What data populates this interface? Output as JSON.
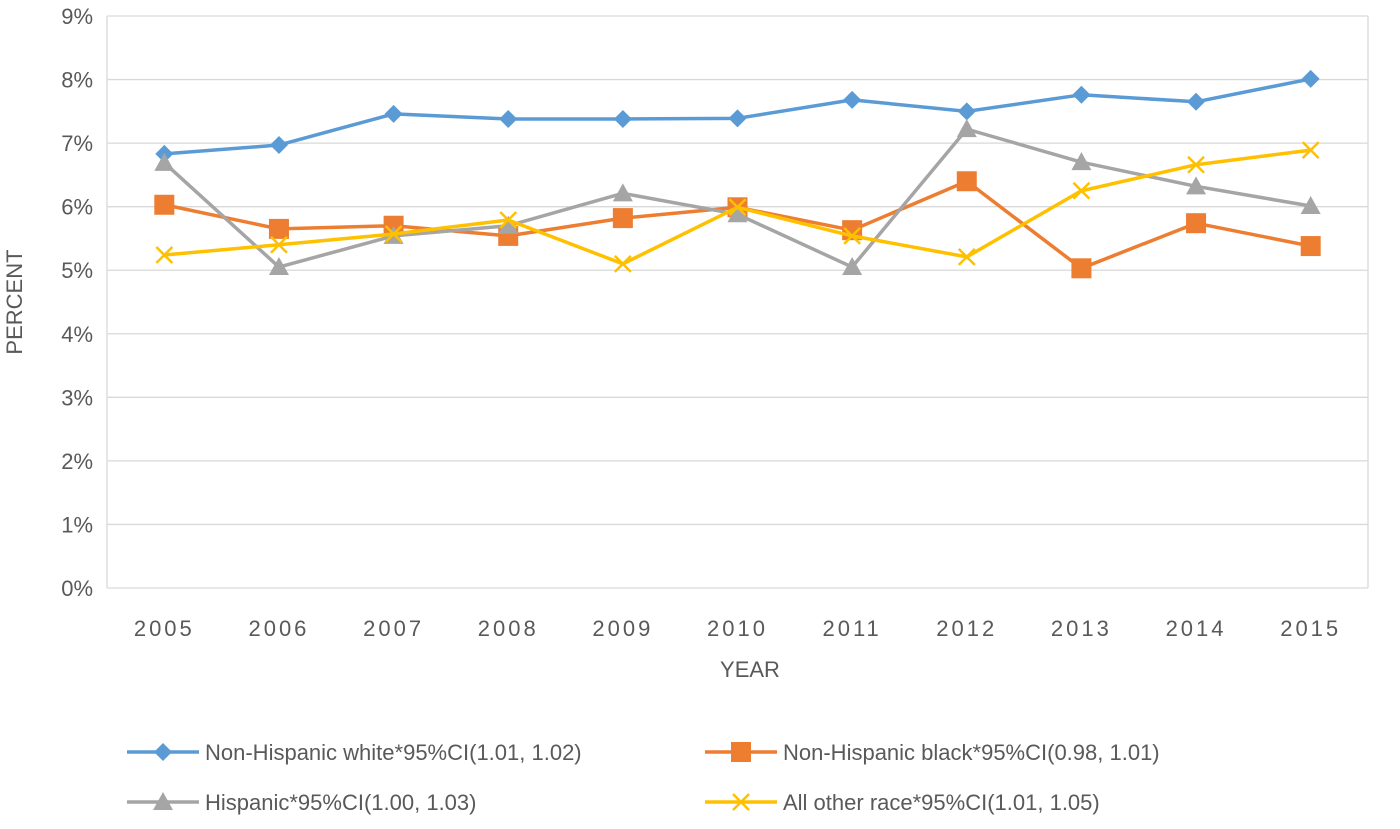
{
  "chart_data": {
    "type": "line",
    "title": "",
    "xlabel": "YEAR",
    "ylabel": "PERCENT",
    "ylim": [
      0,
      9
    ],
    "yticks": [
      "0%",
      "1%",
      "2%",
      "3%",
      "4%",
      "5%",
      "6%",
      "7%",
      "8%",
      "9%"
    ],
    "grid": true,
    "legend_placement": "bottom",
    "categories": [
      "2005",
      "2006",
      "2007",
      "2008",
      "2009",
      "2010",
      "2011",
      "2012",
      "2013",
      "2014",
      "2015"
    ],
    "series": [
      {
        "name": "Non-Hispanic white*95%CI(1.01, 1.02)",
        "color": "#5B9BD5",
        "marker": "diamond",
        "values": [
          6.83,
          6.97,
          7.46,
          7.38,
          7.38,
          7.39,
          7.68,
          7.5,
          7.76,
          7.65,
          8.01
        ]
      },
      {
        "name": "Non-Hispanic black*95%CI(0.98, 1.01)",
        "color": "#ED7D31",
        "marker": "square",
        "values": [
          6.03,
          5.65,
          5.7,
          5.54,
          5.82,
          5.99,
          5.63,
          6.4,
          5.03,
          5.74,
          5.38
        ]
      },
      {
        "name": "Hispanic*95%CI(1.00, 1.03)",
        "color": "#A5A5A5",
        "marker": "triangle",
        "values": [
          6.69,
          5.05,
          5.54,
          5.7,
          6.21,
          5.88,
          5.05,
          7.22,
          6.7,
          6.32,
          6.01
        ]
      },
      {
        "name": "All other race*95%CI(1.01, 1.05)",
        "color": "#FFC000",
        "marker": "x",
        "values": [
          5.24,
          5.4,
          5.57,
          5.79,
          5.1,
          5.99,
          5.54,
          5.21,
          6.25,
          6.66,
          6.89
        ]
      }
    ]
  }
}
